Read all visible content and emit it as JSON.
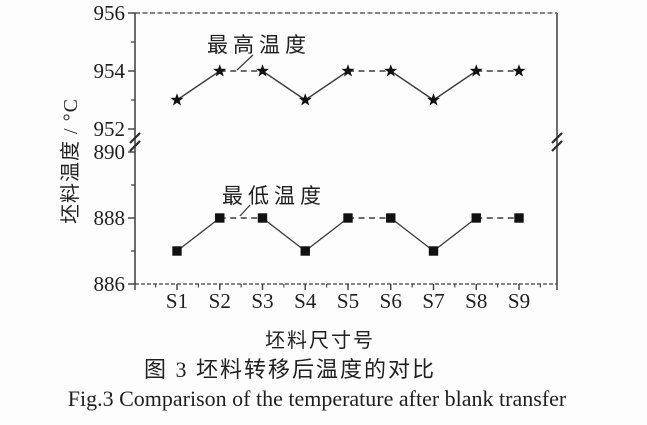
{
  "chart_data": {
    "type": "line",
    "title": "图 3  坯料转移后温度的对比",
    "title_en": "Fig.3  Comparison of the temperature after blank transfer",
    "xlabel": "坯料尺寸号",
    "ylabel": "坯料温度 / °C",
    "categories": [
      "S1",
      "S2",
      "S3",
      "S4",
      "S5",
      "S6",
      "S7",
      "S8",
      "S9"
    ],
    "series": [
      {
        "name": "最高温度",
        "marker": "star",
        "values": [
          953,
          954,
          954,
          953,
          954,
          954,
          953,
          954,
          954
        ]
      },
      {
        "name": "最低温度",
        "marker": "square",
        "values": [
          887,
          888,
          888,
          887,
          888,
          888,
          887,
          888,
          888
        ]
      }
    ],
    "y_axis": {
      "broken": true,
      "top_ticks": [
        956,
        954,
        952
      ],
      "top_range": [
        952,
        956
      ],
      "top_minor_ticks": [
        955,
        953
      ],
      "bottom_ticks": [
        890,
        888,
        886
      ],
      "bottom_range": [
        886,
        890
      ],
      "bottom_minor_ticks": [
        889,
        887
      ]
    },
    "grid": false,
    "legend_position": "inline-annotations",
    "line_style": {
      "equal_value_segments": "dashed",
      "sloped_segments": "solid"
    },
    "colors": {
      "ink": "#1f1f1f",
      "line": "#3d3d3d",
      "marker": "#111111",
      "background": "#fdfdfd"
    }
  }
}
